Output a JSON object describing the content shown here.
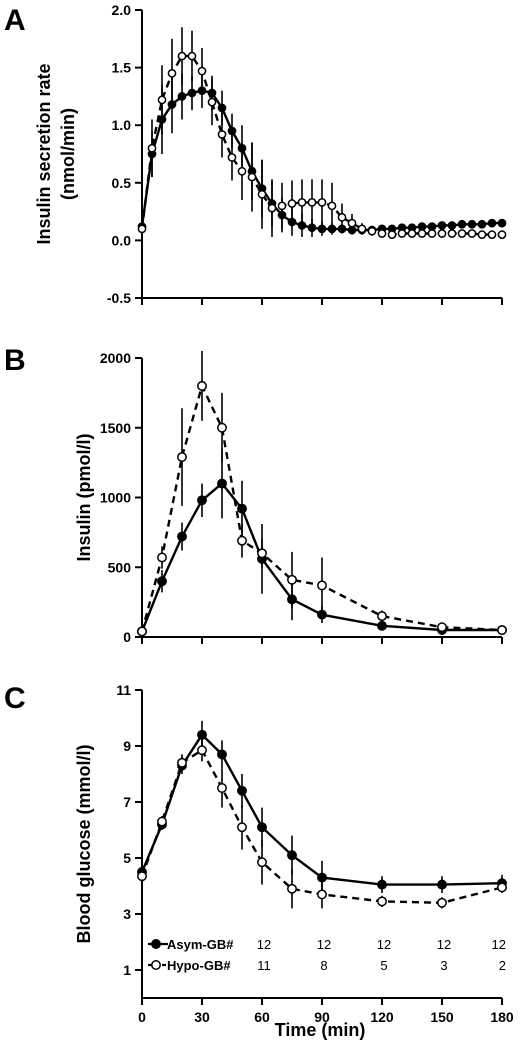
{
  "figure": {
    "shared_x": {
      "xlabel": "Time (min)",
      "ticks": [
        0,
        30,
        60,
        90,
        120,
        150,
        180
      ],
      "tick_labels": [
        "0",
        "30",
        "60",
        "90",
        "120",
        "150",
        "180"
      ],
      "xlim": [
        0,
        180
      ]
    }
  },
  "chart_data": [
    {
      "panel": "A",
      "type": "line",
      "ylabel_lines": [
        "Insulin secretion rate",
        "(nmol/min)"
      ],
      "ylim": [
        -0.5,
        2.0
      ],
      "yticks": [
        -0.5,
        0.0,
        0.5,
        1.0,
        1.5,
        2.0
      ],
      "ytick_labels": [
        "-0.5",
        "0.0",
        "0.5",
        "1.0",
        "1.5",
        "2.0"
      ],
      "series": [
        {
          "key": "asym",
          "marker": "filled",
          "dashed": false,
          "x": [
            0,
            5,
            10,
            15,
            20,
            25,
            30,
            35,
            40,
            45,
            50,
            55,
            60,
            65,
            70,
            75,
            80,
            85,
            90,
            95,
            100,
            105,
            110,
            115,
            120,
            125,
            130,
            135,
            140,
            145,
            150,
            155,
            160,
            165,
            170,
            175,
            180
          ],
          "y": [
            0.12,
            0.75,
            1.05,
            1.18,
            1.25,
            1.28,
            1.3,
            1.28,
            1.15,
            0.95,
            0.8,
            0.6,
            0.45,
            0.32,
            0.22,
            0.16,
            0.13,
            0.11,
            0.1,
            0.1,
            0.1,
            0.09,
            0.09,
            0.09,
            0.1,
            0.1,
            0.11,
            0.11,
            0.12,
            0.12,
            0.13,
            0.13,
            0.14,
            0.14,
            0.14,
            0.15,
            0.15
          ],
          "err": [
            0.03,
            0.2,
            0.3,
            0.25,
            0.2,
            0.15,
            0.15,
            0.15,
            0.15,
            0.15,
            0.2,
            0.25,
            0.25,
            0.2,
            0.15,
            0.12,
            0.1,
            0.08,
            0.06,
            0.05,
            0.04,
            0.04,
            0.04,
            0.03,
            0.03,
            0.03,
            0.03,
            0.03,
            0.03,
            0.03,
            0.03,
            0.03,
            0.03,
            0.03,
            0.03,
            0.03,
            0.03
          ]
        },
        {
          "key": "hypo",
          "marker": "open",
          "dashed": true,
          "x": [
            0,
            5,
            10,
            15,
            20,
            25,
            30,
            35,
            40,
            45,
            50,
            55,
            60,
            65,
            70,
            75,
            80,
            85,
            90,
            95,
            100,
            105,
            110,
            115,
            120,
            125,
            130,
            135,
            140,
            145,
            150,
            155,
            160,
            165,
            170,
            175,
            180
          ],
          "y": [
            0.1,
            0.8,
            1.22,
            1.45,
            1.6,
            1.6,
            1.47,
            1.2,
            0.92,
            0.72,
            0.6,
            0.55,
            0.4,
            0.28,
            0.3,
            0.32,
            0.33,
            0.33,
            0.33,
            0.3,
            0.2,
            0.15,
            0.1,
            0.08,
            0.06,
            0.05,
            0.06,
            0.06,
            0.06,
            0.06,
            0.06,
            0.06,
            0.06,
            0.06,
            0.05,
            0.05,
            0.05
          ],
          "err": [
            0.03,
            0.25,
            0.3,
            0.3,
            0.25,
            0.22,
            0.2,
            0.2,
            0.2,
            0.2,
            0.25,
            0.3,
            0.3,
            0.25,
            0.2,
            0.2,
            0.2,
            0.2,
            0.2,
            0.2,
            0.12,
            0.08,
            0.05,
            0.04,
            0.03,
            0.03,
            0.03,
            0.03,
            0.03,
            0.03,
            0.03,
            0.03,
            0.03,
            0.03,
            0.03,
            0.03,
            0.03
          ]
        }
      ]
    },
    {
      "panel": "B",
      "type": "line",
      "ylabel_lines": [
        "Insulin (pmol/l)"
      ],
      "ylim": [
        0,
        2000
      ],
      "yticks": [
        0,
        500,
        1000,
        1500,
        2000
      ],
      "ytick_labels": [
        "0",
        "500",
        "1000",
        "1500",
        "2000"
      ],
      "series": [
        {
          "key": "asym",
          "marker": "filled",
          "dashed": false,
          "x": [
            0,
            10,
            20,
            30,
            40,
            50,
            60,
            75,
            90,
            120,
            150,
            180
          ],
          "y": [
            40,
            400,
            720,
            980,
            1100,
            920,
            560,
            270,
            160,
            80,
            50,
            50
          ],
          "err": [
            10,
            80,
            100,
            120,
            250,
            200,
            250,
            150,
            60,
            30,
            20,
            20
          ]
        },
        {
          "key": "hypo",
          "marker": "open",
          "dashed": true,
          "x": [
            0,
            10,
            20,
            30,
            40,
            50,
            60,
            75,
            90,
            120,
            150,
            180
          ],
          "y": [
            40,
            570,
            1290,
            1800,
            1500,
            690,
            600,
            410,
            370,
            150,
            70,
            50
          ],
          "err": [
            10,
            80,
            350,
            250,
            250,
            120,
            100,
            200,
            200,
            40,
            20,
            20
          ]
        }
      ]
    },
    {
      "panel": "C",
      "type": "line",
      "ylabel_lines": [
        "Blood glucose (mmol/l)"
      ],
      "ylim": [
        0,
        11
      ],
      "yticks": [
        1,
        3,
        5,
        7,
        9,
        11
      ],
      "ytick_labels": [
        "1",
        "3",
        "5",
        "7",
        "9",
        "11"
      ],
      "series": [
        {
          "key": "asym",
          "marker": "filled",
          "dashed": false,
          "x": [
            0,
            10,
            20,
            30,
            40,
            50,
            60,
            75,
            90,
            120,
            150,
            180
          ],
          "y": [
            4.5,
            6.2,
            8.3,
            9.4,
            8.7,
            7.4,
            6.1,
            5.1,
            4.3,
            4.05,
            4.05,
            4.1
          ],
          "err": [
            0.15,
            0.2,
            0.3,
            0.5,
            0.5,
            0.6,
            0.7,
            0.7,
            0.6,
            0.3,
            0.3,
            0.3
          ]
        },
        {
          "key": "hypo",
          "marker": "open",
          "dashed": true,
          "x": [
            0,
            10,
            20,
            30,
            40,
            50,
            60,
            75,
            90,
            120,
            150,
            180
          ],
          "y": [
            4.35,
            6.3,
            8.4,
            8.85,
            7.5,
            6.1,
            4.85,
            3.9,
            3.7,
            3.45,
            3.4,
            3.95
          ],
          "err": [
            0.15,
            0.2,
            0.3,
            0.4,
            0.7,
            0.8,
            0.8,
            0.7,
            0.5,
            0.2,
            0.2,
            0.2
          ]
        }
      ],
      "legend": [
        {
          "label": "Asym-GB#",
          "marker": "filled",
          "dashed": false,
          "counts": [
            "12",
            "12",
            "12",
            "12",
            "12"
          ]
        },
        {
          "label": "Hypo-GB#",
          "marker": "open",
          "dashed": true,
          "counts": [
            "11",
            "8",
            "5",
            "3",
            "2"
          ]
        }
      ]
    }
  ],
  "colors": {
    "ink": "#000000",
    "open_fill": "#ffffff",
    "background": "#ffffff"
  }
}
